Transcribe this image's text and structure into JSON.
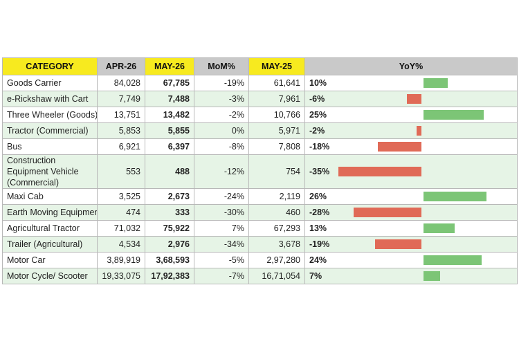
{
  "header": {
    "category": "CATEGORY",
    "apr26": "APR-26",
    "may26": "MAY-26",
    "mom": "MoM%",
    "may25": "MAY-25",
    "yoy": "YoY%"
  },
  "colors": {
    "yellow": "#f7ea1f",
    "gray": "#c9c9c9",
    "positive": "#7cc576",
    "negative": "#e06a57",
    "stripe": "#e6f4e6"
  },
  "rows": [
    {
      "category": "Goods Carrier",
      "apr26": "84,028",
      "may26": "67,785",
      "mom": "-19%",
      "may25": "61,641",
      "yoy": "10%",
      "yoy_value": 10
    },
    {
      "category": "e-Rickshaw with Cart",
      "apr26": "7,749",
      "may26": "7,488",
      "mom": "-3%",
      "may25": "7,961",
      "yoy": "-6%",
      "yoy_value": -6
    },
    {
      "category": "Three Wheeler (Goods)",
      "apr26": "13,751",
      "may26": "13,482",
      "mom": "-2%",
      "may25": "10,766",
      "yoy": "25%",
      "yoy_value": 25
    },
    {
      "category": "Tractor (Commercial)",
      "apr26": "5,853",
      "may26": "5,855",
      "mom": "0%",
      "may25": "5,971",
      "yoy": "-2%",
      "yoy_value": -2
    },
    {
      "category": "Bus",
      "apr26": "6,921",
      "may26": "6,397",
      "mom": "-8%",
      "may25": "7,808",
      "yoy": "-18%",
      "yoy_value": -18
    },
    {
      "category": "Construction Equipment Vehicle (Commercial)",
      "apr26": "553",
      "may26": "488",
      "mom": "-12%",
      "may25": "754",
      "yoy": "-35%",
      "yoy_value": -35
    },
    {
      "category": "Maxi Cab",
      "apr26": "3,525",
      "may26": "2,673",
      "mom": "-24%",
      "may25": "2,119",
      "yoy": "26%",
      "yoy_value": 26
    },
    {
      "category": "Earth Moving Equipment",
      "apr26": "474",
      "may26": "333",
      "mom": "-30%",
      "may25": "460",
      "yoy": "-28%",
      "yoy_value": -28
    },
    {
      "category": "Agricultural Tractor",
      "apr26": "71,032",
      "may26": "75,922",
      "mom": "7%",
      "may25": "67,293",
      "yoy": "13%",
      "yoy_value": 13
    },
    {
      "category": "Trailer (Agricultural)",
      "apr26": "4,534",
      "may26": "2,976",
      "mom": "-34%",
      "may25": "3,678",
      "yoy": "-19%",
      "yoy_value": -19
    },
    {
      "category": "Motor Car",
      "apr26": "3,89,919",
      "may26": "3,68,593",
      "mom": "-5%",
      "may25": "2,97,280",
      "yoy": "24%",
      "yoy_value": 24
    },
    {
      "category": "Motor Cycle/ Scooter",
      "apr26": "19,33,075",
      "may26": "17,92,383",
      "mom": "-7%",
      "may25": "16,71,054",
      "yoy": "7%",
      "yoy_value": 7
    }
  ]
}
